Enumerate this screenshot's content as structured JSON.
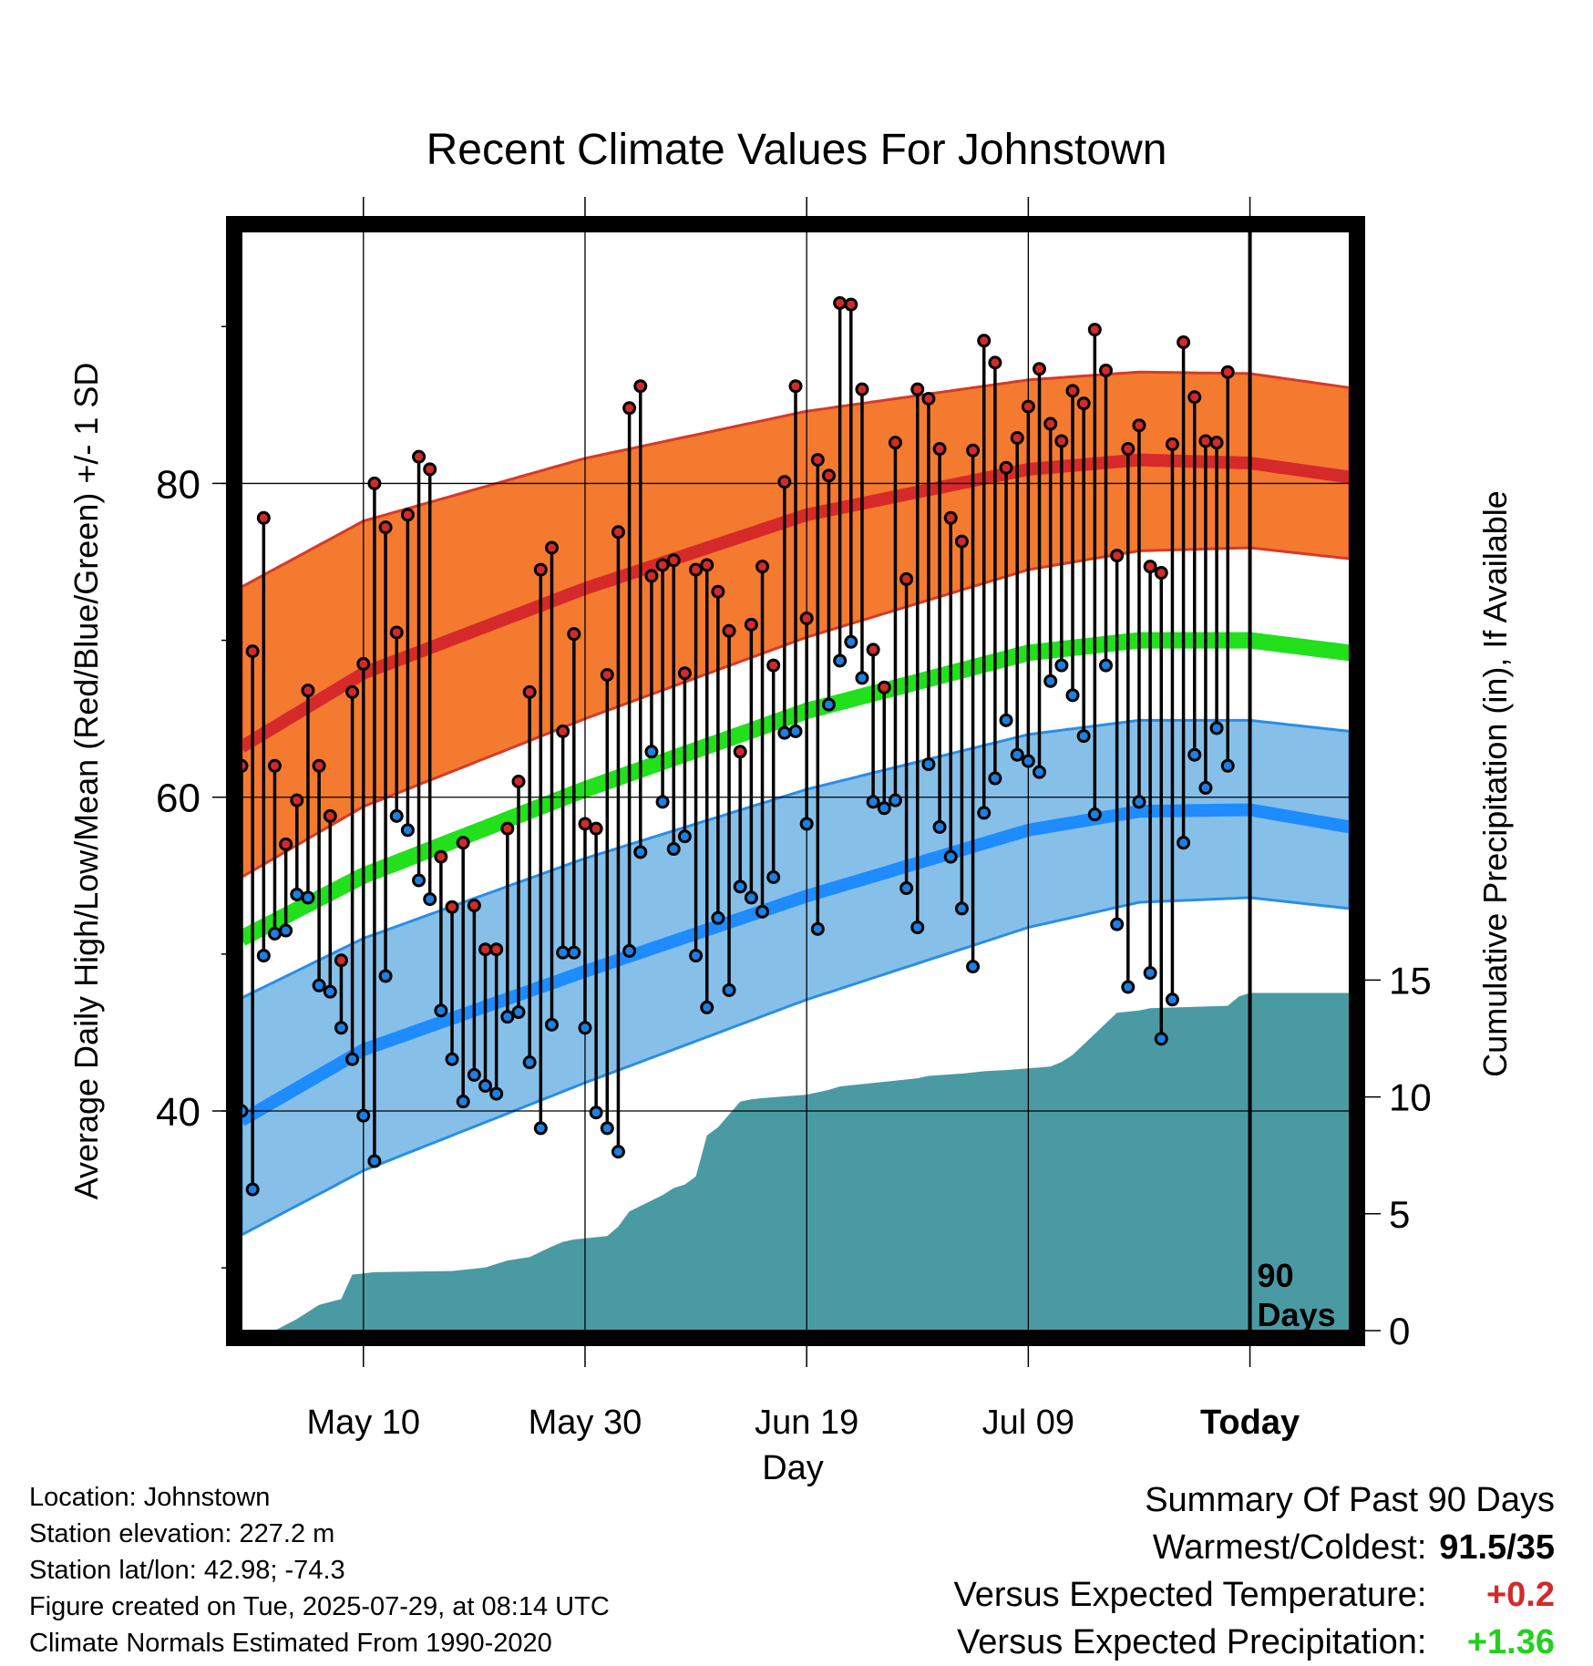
{
  "chart_data": {
    "type": "line",
    "title": "Recent Climate Values For Johnstown",
    "xlabel": "Day",
    "ylabel": "Average Daily High/Low/Mean (Red/Blue/Green) +/- 1 SD",
    "y2label": "Cumulative Precipitation (in), If Available",
    "ylim": [
      26,
      96
    ],
    "y2lim": [
      0,
      47
    ],
    "yticks": [
      80,
      60,
      40
    ],
    "y2ticks": [
      15,
      10,
      5,
      0
    ],
    "xtick_labels": [
      "May 10",
      "May 30",
      "Jun 19",
      "Jul 09",
      "Today"
    ],
    "xlim_days_relative_to_today": [
      -91,
      9
    ],
    "xtick_days": [
      -80,
      -60,
      -40,
      -20,
      0
    ],
    "today_marker_label": [
      "90",
      "Days"
    ],
    "grid": true,
    "normals": {
      "day": [
        -91,
        -80,
        -60,
        -40,
        -20,
        -10,
        0,
        9
      ],
      "high_mean": [
        63.2,
        67.9,
        73.3,
        78.0,
        80.9,
        81.5,
        81.3,
        80.4
      ],
      "high_upper": [
        73.4,
        77.6,
        81.6,
        84.6,
        86.6,
        87.1,
        87.0,
        86.1
      ],
      "high_lower": [
        54.9,
        59.4,
        65.0,
        70.2,
        74.5,
        75.7,
        75.9,
        75.2
      ],
      "mean": [
        51.0,
        55.0,
        60.5,
        65.5,
        69.2,
        70.0,
        70.0,
        69.2
      ],
      "low_mean": [
        39.4,
        43.9,
        48.9,
        53.7,
        57.9,
        59.1,
        59.2,
        58.1
      ],
      "low_upper": [
        47.2,
        51.0,
        56.1,
        60.5,
        64.0,
        64.9,
        64.9,
        64.2
      ],
      "low_lower": [
        32.1,
        36.2,
        41.8,
        47.1,
        51.7,
        53.3,
        53.6,
        52.9
      ]
    },
    "series": [
      {
        "name": "Daily High",
        "color": "#d02b2b",
        "values": [
          62,
          69.3,
          77.8,
          62,
          57,
          59.8,
          66.8,
          62,
          58.8,
          49.6,
          66.7,
          68.5,
          80,
          77.2,
          70.5,
          78,
          81.7,
          80.9,
          56.2,
          53,
          57.1,
          53.1,
          50.3,
          50.3,
          58,
          61,
          66.7,
          74.5,
          75.9,
          64.2,
          70.4,
          58.3,
          58,
          67.8,
          76.9,
          84.8,
          86.2,
          74.1,
          74.8,
          75.1,
          67.9,
          74.5,
          74.8,
          73.1,
          70.6,
          62.9,
          71,
          74.7,
          68.4,
          80.1,
          86.2,
          71.4,
          81.5,
          80.5,
          91.5,
          91.4,
          86,
          69.4,
          67,
          82.6,
          73.9,
          86,
          85.4,
          82.2,
          77.8,
          76.3,
          82.1,
          89.1,
          87.7,
          81,
          82.9,
          84.9,
          87.3,
          83.8,
          82.7,
          85.9,
          85.1,
          89.8,
          87.2,
          75.4,
          82.2,
          83.7,
          74.7,
          74.3,
          82.5,
          89,
          85.5,
          82.7,
          82.6,
          87.1
        ]
      },
      {
        "name": "Daily Low",
        "color": "#1f7fe0",
        "values": [
          40,
          35,
          49.9,
          51.3,
          51.5,
          53.8,
          53.6,
          48,
          47.6,
          45.3,
          43.3,
          39.7,
          36.8,
          48.6,
          58.8,
          57.9,
          54.7,
          53.5,
          46.4,
          43.3,
          40.6,
          42.3,
          41.6,
          41.1,
          46,
          46.3,
          43.1,
          38.9,
          45.5,
          50.1,
          50.1,
          45.3,
          39.9,
          38.9,
          37.4,
          50.2,
          56.5,
          62.9,
          59.7,
          56.7,
          57.5,
          49.9,
          46.6,
          52.3,
          47.7,
          54.3,
          53.6,
          52.7,
          54.9,
          64.1,
          64.2,
          58.3,
          51.6,
          65.9,
          68.7,
          69.9,
          67.6,
          59.7,
          59.3,
          59.8,
          54.2,
          51.7,
          62.1,
          58.1,
          56.2,
          52.9,
          49.2,
          59,
          61.2,
          64.9,
          62.7,
          62.3,
          61.6,
          67.4,
          68.4,
          66.5,
          63.9,
          58.9,
          68.4,
          51.9,
          47.9,
          59.7,
          48.8,
          44.6,
          47.1,
          57.1,
          62.7,
          60.6,
          64.4,
          62
        ]
      },
      {
        "name": "Cumulative Precipitation",
        "color": "#4a9aa3",
        "day": [
          -91,
          -88,
          -86,
          -84,
          -82,
          -81,
          -80,
          -79,
          -72,
          -69,
          -68,
          -67,
          -65,
          -63,
          -62,
          -61,
          -58,
          -57,
          -56,
          -53,
          -52,
          -51,
          -50,
          -49,
          -48,
          -46,
          -45,
          -44,
          -40,
          -39,
          -38,
          -37,
          -36,
          -35,
          -34,
          -33,
          -32,
          -30,
          -29,
          -26,
          -25,
          -24,
          -22,
          -18,
          -17,
          -16,
          -12,
          -10,
          -9,
          -2,
          -1,
          0,
          9
        ],
        "values": [
          0,
          0,
          0.5,
          1.1,
          1.35,
          2.4,
          2.45,
          2.5,
          2.55,
          2.7,
          2.85,
          3,
          3.15,
          3.6,
          3.8,
          3.9,
          4.05,
          4.45,
          5.1,
          5.8,
          6.1,
          6.25,
          6.6,
          8.35,
          8.7,
          9.8,
          9.9,
          9.95,
          10.1,
          10.2,
          10.3,
          10.45,
          10.5,
          10.55,
          10.6,
          10.65,
          10.7,
          10.8,
          10.9,
          11,
          11.05,
          11.1,
          11.15,
          11.3,
          11.5,
          11.8,
          13.6,
          13.7,
          13.8,
          13.9,
          14.3,
          14.45,
          14.45
        ]
      }
    ]
  },
  "info": {
    "location": "Location: Johnstown",
    "elevation": "Station elevation: 227.2 m",
    "latlon": "Station lat/lon: 42.98; -74.3",
    "created": "Figure created on Tue, 2025-07-29, at 08:14 UTC",
    "normals": "Climate Normals Estimated From 1990-2020"
  },
  "summary": {
    "heading": "Summary Of Past 90 Days",
    "warm_label": "Warmest/Coldest:",
    "warm_value": "91.5/35",
    "temp_label": "Versus Expected Temperature:",
    "temp_value": "+0.2",
    "precip_label": "Versus Expected Precipitation:",
    "precip_value": "+1.36",
    "temp_color": "#d22a2a",
    "precip_color": "#22d11e"
  }
}
